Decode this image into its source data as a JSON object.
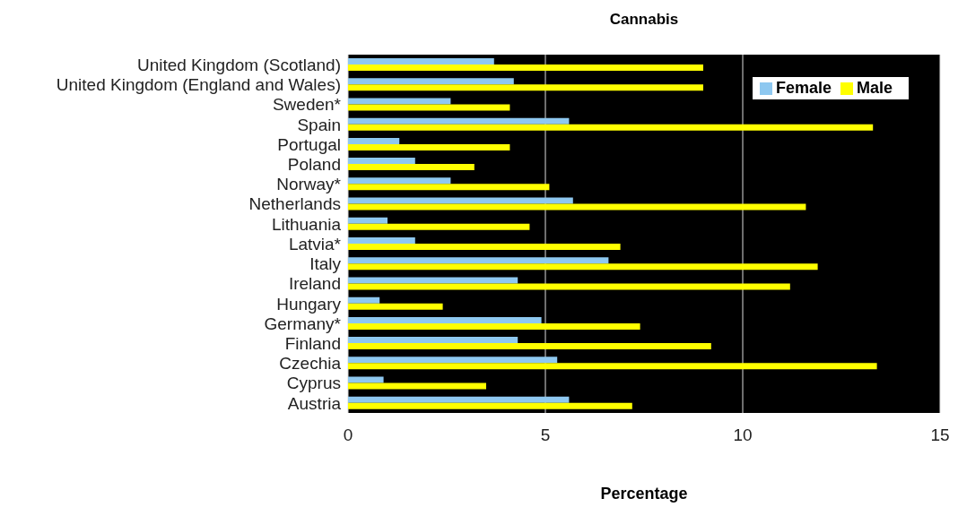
{
  "chart_data": {
    "type": "bar",
    "orientation": "horizontal",
    "title": "Cannabis",
    "xlabel": "Percentage",
    "categories": [
      "United Kingdom (Scotland)",
      "United Kingdom (England and Wales)",
      "Sweden*",
      "Spain",
      "Portugal",
      "Poland",
      "Norway*",
      "Netherlands",
      "Lithuania",
      "Latvia*",
      "Italy",
      "Ireland",
      "Hungary",
      "Germany*",
      "Finland",
      "Czechia",
      "Cyprus",
      "Austria"
    ],
    "series": [
      {
        "name": "Female",
        "color": "#8ec8f0",
        "values": [
          3.7,
          4.2,
          2.6,
          5.6,
          1.3,
          1.7,
          2.6,
          5.7,
          1.0,
          1.7,
          6.6,
          4.3,
          0.8,
          4.9,
          4.3,
          5.3,
          0.9,
          5.6
        ]
      },
      {
        "name": "Male",
        "color": "#ffff00",
        "values": [
          9.0,
          9.0,
          4.1,
          13.3,
          4.1,
          3.2,
          5.1,
          11.6,
          4.6,
          6.9,
          11.9,
          11.2,
          2.4,
          7.4,
          9.2,
          13.4,
          3.5,
          7.2
        ]
      }
    ],
    "xlim": [
      0,
      15
    ],
    "xticks": [
      0,
      5,
      10,
      15
    ],
    "grid": "x",
    "legend": "top right"
  }
}
